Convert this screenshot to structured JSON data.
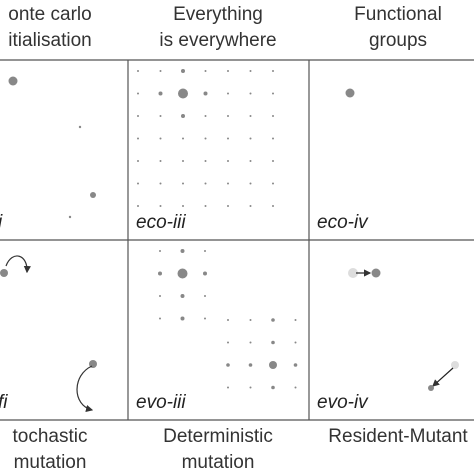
{
  "columns": [
    {
      "title": [
        "onte carlo",
        "itialisation"
      ]
    },
    {
      "title": [
        "Everything",
        "is everywhere"
      ]
    },
    {
      "title": [
        "Functional",
        "groups"
      ]
    }
  ],
  "panels": [
    "i",
    "eco-iii",
    "eco-iv",
    "fi",
    "evo-iii",
    "evo-iv"
  ],
  "rows_bottom": [
    {
      "title": [
        "tochastic",
        "mutation"
      ]
    },
    {
      "title": [
        "Deterministic",
        "mutation"
      ]
    },
    {
      "title": [
        "Resident-Mutant"
      ]
    }
  ]
}
